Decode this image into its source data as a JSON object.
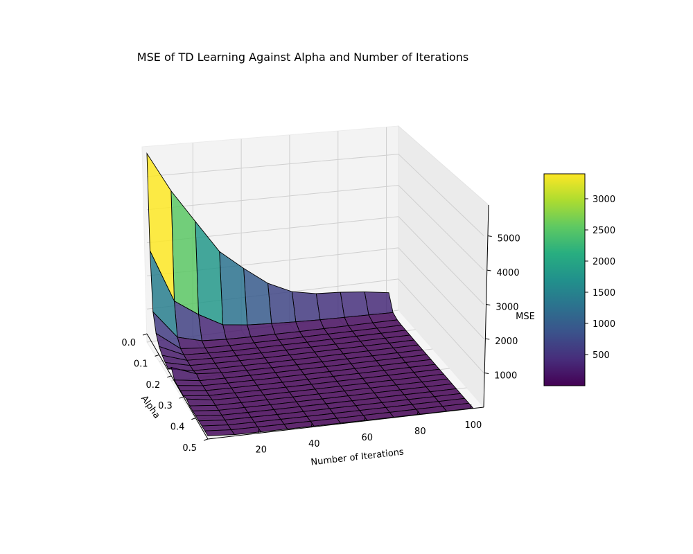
{
  "chart_data": {
    "type": "surface3d",
    "title": "MSE of TD Learning Against Alpha and Number of Iterations",
    "xlabel": "Alpha",
    "ylabel": "Number of Iterations",
    "zlabel": "MSE",
    "alpha_ticks": [
      "0.0",
      "0.1",
      "0.2",
      "0.3",
      "0.4",
      "0.5"
    ],
    "iteration_ticks": [
      "20",
      "40",
      "60",
      "80",
      "100"
    ],
    "mse_ticks": [
      "1000",
      "2000",
      "3000",
      "4000",
      "5000"
    ],
    "colorbar_ticks": [
      "500",
      "1000",
      "1500",
      "2000",
      "2500",
      "3000"
    ],
    "colorbar_range": [
      0,
      3400
    ],
    "colormap": "viridis",
    "alpha_values": [
      0.0,
      0.025,
      0.05,
      0.075,
      0.1,
      0.125,
      0.15,
      0.175,
      0.2,
      0.225,
      0.25,
      0.275,
      0.3,
      0.325,
      0.35,
      0.375,
      0.4,
      0.425,
      0.45,
      0.475,
      0.5
    ],
    "iteration_values": [
      1,
      11,
      21,
      31,
      41,
      51,
      61,
      71,
      81,
      91,
      101
    ],
    "mse_rows": [
      [
        5700,
        4500,
        3500,
        2500,
        1900,
        1350,
        1000,
        850,
        800,
        720,
        600
      ],
      [
        2900,
        1300,
        800,
        400,
        300,
        250,
        210,
        180,
        160,
        140,
        120
      ],
      [
        1200,
        350,
        150,
        100,
        80,
        70,
        60,
        55,
        50,
        45,
        40
      ],
      [
        700,
        150,
        80,
        60,
        50,
        45,
        40,
        35,
        30,
        28,
        25
      ],
      [
        450,
        110,
        70,
        50,
        40,
        35,
        30,
        28,
        25,
        22,
        20
      ],
      [
        330,
        90,
        60,
        45,
        35,
        30,
        27,
        25,
        22,
        20,
        18
      ],
      [
        260,
        80,
        55,
        40,
        32,
        28,
        25,
        22,
        20,
        18,
        16
      ],
      [
        210,
        70,
        50,
        38,
        30,
        26,
        23,
        21,
        19,
        17,
        15
      ],
      [
        400,
        120,
        60,
        40,
        30,
        25,
        22,
        20,
        18,
        16,
        15
      ],
      [
        170,
        60,
        45,
        35,
        28,
        24,
        21,
        19,
        17,
        15,
        14
      ],
      [
        150,
        55,
        42,
        33,
        27,
        23,
        20,
        18,
        16,
        15,
        13
      ],
      [
        140,
        52,
        40,
        32,
        26,
        22,
        19,
        17,
        15,
        14,
        12
      ],
      [
        130,
        50,
        38,
        30,
        25,
        21,
        18,
        16,
        15,
        13,
        12
      ],
      [
        180,
        60,
        40,
        30,
        24,
        20,
        18,
        16,
        14,
        13,
        11
      ],
      [
        120,
        47,
        36,
        29,
        23,
        20,
        17,
        15,
        14,
        12,
        11
      ],
      [
        115,
        45,
        35,
        28,
        22,
        19,
        17,
        15,
        13,
        12,
        10
      ],
      [
        110,
        44,
        34,
        27,
        22,
        19,
        16,
        14,
        13,
        11,
        10
      ],
      [
        105,
        42,
        33,
        26,
        21,
        18,
        16,
        14,
        12,
        11,
        10
      ],
      [
        100,
        41,
        32,
        25,
        21,
        18,
        15,
        13,
        12,
        11,
        9
      ],
      [
        98,
        40,
        31,
        25,
        20,
        17,
        15,
        13,
        12,
        10,
        9
      ],
      [
        95,
        39,
        30,
        24,
        20,
        17,
        15,
        13,
        11,
        10,
        9
      ]
    ]
  }
}
